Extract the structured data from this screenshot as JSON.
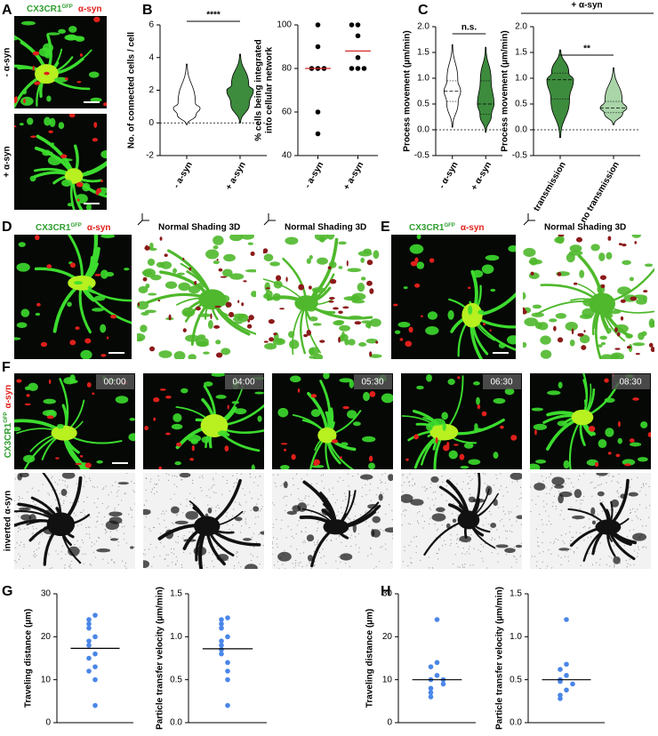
{
  "figure": {
    "panel_labels": [
      "A",
      "B",
      "C",
      "D",
      "E",
      "F",
      "G",
      "H"
    ],
    "A": {
      "marker": "CX3CR1",
      "marker_sup": "GFP",
      "stain": "α-syn",
      "conditions": [
        "- α-syn",
        "+ α-syn"
      ]
    },
    "D": {
      "marker": "CX3CR1",
      "marker_sup": "GFP",
      "stain": "α-syn",
      "render_labels": [
        "Normal Shading 3D",
        "Normal Shading 3D"
      ]
    },
    "E": {
      "marker": "CX3CR1",
      "marker_sup": "GFP",
      "stain": "α-syn",
      "render_label": "Normal Shading 3D"
    },
    "F": {
      "timestamps": [
        "00:00",
        "04:00",
        "05:30",
        "06:30",
        "08:30"
      ],
      "row_labels": {
        "marker": "CX3CR1",
        "marker_sup": "GFP",
        "stain": "α-syn",
        "inverted": "inverted α-syn"
      }
    }
  },
  "chart_data": [
    {
      "type": "violin",
      "ylabel": [
        "No. of connected cells / cell"
      ],
      "categories": [
        "- a-syn",
        "+ a-syn"
      ],
      "stats": [
        {
          "min": -0.1,
          "q1": 0.5,
          "median": 0.9,
          "q3": 1.2,
          "max": 3.6
        },
        {
          "min": 0,
          "q1": 1.2,
          "median": 2,
          "q3": 2.3,
          "max": 4.2
        }
      ],
      "colors": [
        "#ffffff",
        "#3d8b3d"
      ],
      "quartile_lines": false,
      "ylim": [
        -2,
        6
      ],
      "yticks": [
        -2,
        0,
        2,
        4,
        6
      ],
      "reference_line": 0,
      "significance": "****"
    },
    {
      "type": "dotplot",
      "ylabel": [
        "% cells being integrated",
        "into cellular network"
      ],
      "categories": [
        "- a-syn",
        "+ a-syn"
      ],
      "values": [
        [
          100,
          90,
          80,
          80,
          80,
          60,
          50
        ],
        [
          100,
          100,
          95,
          85,
          80,
          80,
          80
        ]
      ],
      "means": [
        80,
        88
      ],
      "point_color": "#000000",
      "mean_color": "#d62728",
      "ylim": [
        40,
        100
      ],
      "yticks": [
        40,
        60,
        80,
        100
      ]
    },
    {
      "type": "violin",
      "ylabel": [
        "Process movement (µm/min)"
      ],
      "categories": [
        "- α-syn",
        "+ α-syn"
      ],
      "stats": [
        {
          "min": 0.05,
          "q1": 0.55,
          "median": 0.75,
          "q3": 0.95,
          "max": 1.65
        },
        {
          "min": -0.05,
          "q1": 0.3,
          "median": 0.5,
          "q3": 0.95,
          "max": 1.6
        }
      ],
      "colors": [
        "#ffffff",
        "#3d8b3d"
      ],
      "quartile_lines": true,
      "ylim": [
        -0.5,
        2.0
      ],
      "yticks": [
        -0.5,
        {
          "value": 0,
          "label": "0.0"
        },
        0.5,
        {
          "value": 1,
          "label": "1.0"
        },
        1.5,
        {
          "value": 2,
          "label": "2.0"
        }
      ],
      "reference_line": 0,
      "significance": "n.s."
    },
    {
      "type": "violin",
      "ylabel": [
        "Process movement (µm/min)"
      ],
      "categories": [
        "transmission",
        "no transmission"
      ],
      "group_label": "+ α-syn",
      "stats": [
        {
          "min": -0.15,
          "q1": 0.6,
          "median": 0.97,
          "q3": 1.1,
          "max": 1.55
        },
        {
          "min": 0.1,
          "q1": 0.33,
          "median": 0.42,
          "q3": 0.55,
          "max": 1.2
        }
      ],
      "colors": [
        "#3d8b3d",
        "#a9d5a9"
      ],
      "quartile_lines": true,
      "ylim": [
        -0.5,
        2.0
      ],
      "yticks": [
        -0.5,
        {
          "value": 0,
          "label": "0.0"
        },
        0.5,
        {
          "value": 1,
          "label": "1.0"
        },
        1.5,
        {
          "value": 2,
          "label": "2.0"
        }
      ],
      "reference_line": 0,
      "significance": "**"
    },
    {
      "type": "dotplot",
      "ylabel": [
        "Traveling distance (µm)"
      ],
      "values": [
        [
          25,
          24,
          23,
          22,
          20,
          19,
          18,
          16,
          15,
          13,
          12,
          10,
          4
        ]
      ],
      "means": [
        17.3
      ],
      "point_color": "#4a86e8",
      "mean_color": "#000000",
      "ylim": [
        0,
        30
      ],
      "yticks": [
        0,
        10,
        20,
        30
      ]
    },
    {
      "type": "dotplot",
      "ylabel": [
        "Particle transfer velocity (µm/min)"
      ],
      "values": [
        [
          1.22,
          1.2,
          1.15,
          1.1,
          1.0,
          0.95,
          0.9,
          0.85,
          0.8,
          0.7,
          0.6,
          0.5,
          0.2
        ]
      ],
      "means": [
        0.86
      ],
      "point_color": "#4a86e8",
      "mean_color": "#000000",
      "ylim": [
        0,
        1.5
      ],
      "yticks": [
        {
          "value": 0,
          "label": "0.0"
        },
        0.5,
        {
          "value": 1,
          "label": "1.0"
        },
        1.5
      ]
    },
    {
      "type": "dotplot",
      "ylabel": [
        "Traveling distance (µm)"
      ],
      "values": [
        [
          24,
          14,
          13,
          11,
          10,
          10,
          9,
          8,
          7,
          6
        ]
      ],
      "means": [
        10
      ],
      "point_color": "#4a86e8",
      "mean_color": "#000000",
      "ylim": [
        0,
        30
      ],
      "yticks": [
        0,
        10,
        20,
        30
      ]
    },
    {
      "type": "dotplot",
      "ylabel": [
        "Particle transfer velocity (µm/min)"
      ],
      "values": [
        [
          1.2,
          0.68,
          0.62,
          0.55,
          0.5,
          0.48,
          0.45,
          0.38,
          0.32,
          0.28
        ]
      ],
      "means": [
        0.5
      ],
      "point_color": "#4a86e8",
      "mean_color": "#000000",
      "ylim": [
        0,
        1.5
      ],
      "yticks": [
        {
          "value": 0,
          "label": "0.0"
        },
        0.5,
        {
          "value": 1,
          "label": "1.0"
        },
        1.5
      ]
    }
  ]
}
